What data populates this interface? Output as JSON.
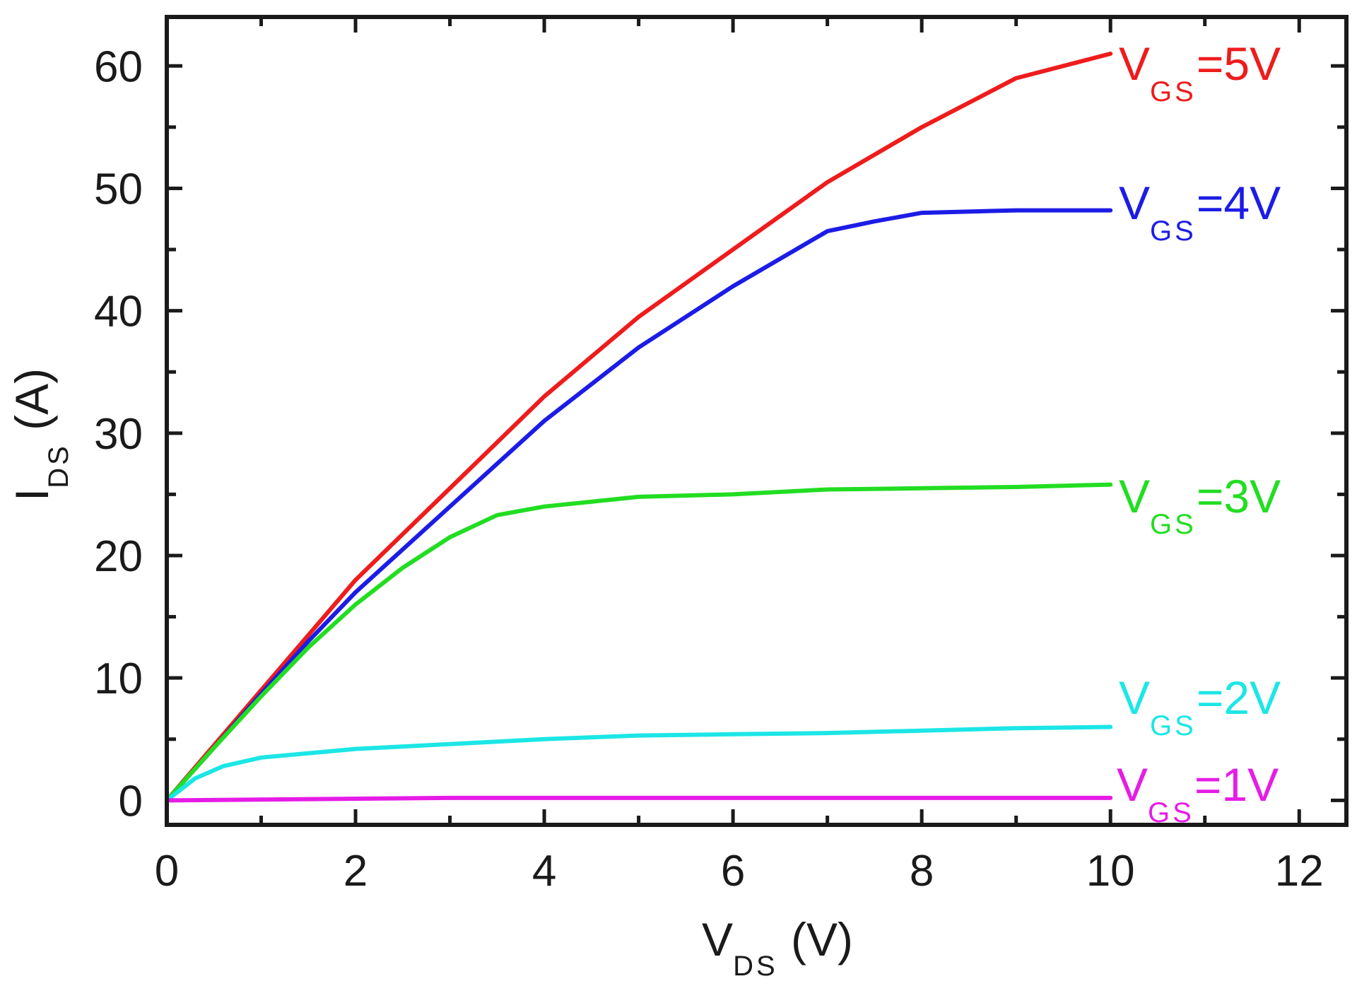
{
  "chart_data": {
    "type": "line",
    "xlabel": {
      "main": "V",
      "sub": "DS",
      "unit": " (V)"
    },
    "ylabel": {
      "main": "I",
      "sub": "DS",
      "unit": " (A)"
    },
    "xlim": [
      0,
      12.5
    ],
    "ylim": [
      -2,
      64
    ],
    "x_ticks": [
      0,
      2,
      4,
      6,
      8,
      10,
      12
    ],
    "y_ticks": [
      0,
      10,
      20,
      30,
      40,
      50,
      60
    ],
    "x_tick_labels": [
      "0",
      "2",
      "4",
      "6",
      "8",
      "10",
      "12"
    ],
    "y_tick_labels": [
      "0",
      "10",
      "20",
      "30",
      "40",
      "50",
      "60"
    ],
    "grid": false,
    "legend": "inline labels at right end of each curve",
    "series": [
      {
        "name": "V_GS=5V",
        "label": {
          "main": "V",
          "sub": "GS",
          "value": "=5V"
        },
        "color": "#ee1c1c",
        "x": [
          0,
          0.5,
          1,
          1.5,
          2,
          3,
          4,
          5,
          6,
          7,
          8,
          9,
          10
        ],
        "y": [
          0,
          4.5,
          9,
          13.5,
          18,
          25.5,
          33,
          39.5,
          45,
          50.5,
          55,
          59,
          61
        ]
      },
      {
        "name": "V_GS=4V",
        "label": {
          "main": "V",
          "sub": "GS",
          "value": "=4V"
        },
        "color": "#1c1ce6",
        "x": [
          0,
          0.5,
          1,
          1.5,
          2,
          3,
          4,
          5,
          6,
          7,
          7.5,
          8,
          9,
          10
        ],
        "y": [
          0,
          4.3,
          8.7,
          13,
          17,
          24,
          31,
          37,
          42,
          46.5,
          47.3,
          48,
          48.2,
          48.2
        ]
      },
      {
        "name": "V_GS=3V",
        "label": {
          "main": "V",
          "sub": "GS",
          "value": "=3V"
        },
        "color": "#22dd22",
        "x": [
          0,
          0.5,
          1,
          1.5,
          2,
          2.5,
          3,
          3.5,
          4,
          5,
          6,
          7,
          8,
          9,
          10
        ],
        "y": [
          0,
          4.3,
          8.5,
          12.5,
          16,
          19,
          21.5,
          23.3,
          24,
          24.8,
          25,
          25.4,
          25.5,
          25.6,
          25.8
        ]
      },
      {
        "name": "V_GS=2V",
        "label": {
          "main": "V",
          "sub": "GS",
          "value": "=2V"
        },
        "color": "#1ce6e6",
        "x": [
          0,
          0.3,
          0.6,
          1,
          2,
          3,
          4,
          5,
          6,
          7,
          8,
          9,
          10
        ],
        "y": [
          0,
          1.8,
          2.8,
          3.5,
          4.2,
          4.6,
          5,
          5.3,
          5.4,
          5.5,
          5.7,
          5.9,
          6
        ]
      },
      {
        "name": "V_GS=1V",
        "label": {
          "main": "V",
          "sub": "GS",
          "value": "=1V"
        },
        "color": "#e61ce6",
        "x": [
          0,
          3,
          10
        ],
        "y": [
          0,
          0.2,
          0.2
        ]
      }
    ]
  }
}
